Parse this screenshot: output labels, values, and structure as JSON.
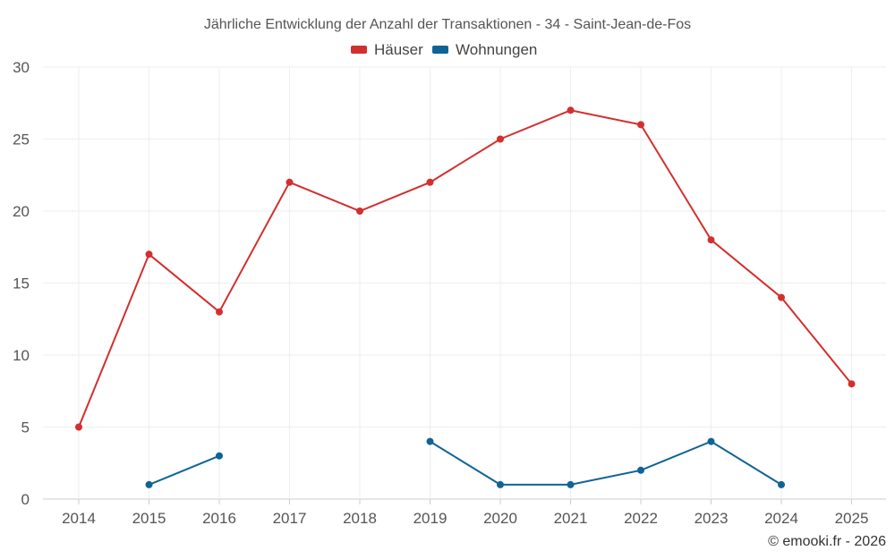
{
  "chart_data": {
    "type": "line",
    "title": "Jährliche Entwicklung der Anzahl der Transaktionen - 34 - Saint-Jean-de-Fos",
    "categories": [
      "2014",
      "2015",
      "2016",
      "2017",
      "2018",
      "2019",
      "2020",
      "2021",
      "2022",
      "2023",
      "2024",
      "2025"
    ],
    "ylim": [
      0,
      30
    ],
    "yticks": [
      0,
      5,
      10,
      15,
      20,
      25,
      30
    ],
    "grid": true,
    "legend_position": "top-center",
    "series": [
      {
        "name": "Häuser",
        "color": "#d32f2f",
        "values": [
          5,
          17,
          13,
          22,
          20,
          22,
          25,
          27,
          26,
          18,
          14,
          8
        ]
      },
      {
        "name": "Wohnungen",
        "color": "#0f6496",
        "values": [
          null,
          1,
          3,
          null,
          null,
          4,
          1,
          1,
          2,
          4,
          1,
          null
        ]
      }
    ]
  },
  "credit": "© emooki.fr - 2026"
}
